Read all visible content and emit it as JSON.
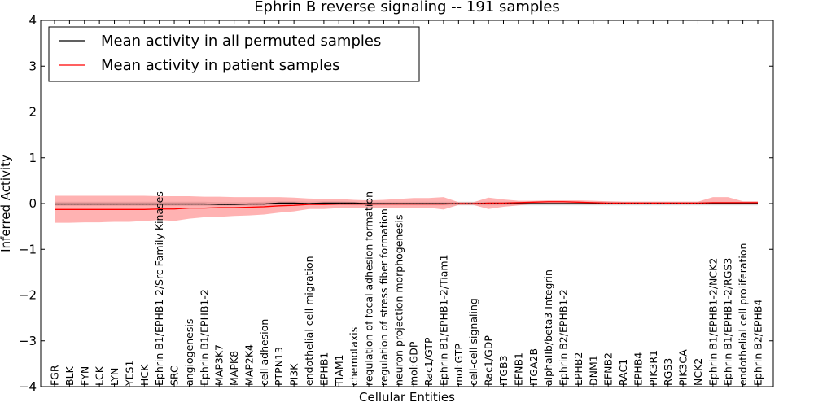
{
  "chart_data": {
    "type": "line",
    "title": "Ephrin B reverse signaling -- 191 samples",
    "xlabel": "Cellular Entities",
    "ylabel": "Inferred Activity",
    "ylim": [
      -4,
      4
    ],
    "yticks": [
      -4,
      -3,
      -2,
      -1,
      0,
      1,
      2,
      3,
      4
    ],
    "ytick_labels": [
      "−4",
      "−3",
      "−2",
      "−1",
      "0",
      "1",
      "2",
      "3",
      "4"
    ],
    "grid": false,
    "legend_placement": "top-left",
    "categories": [
      "FGR",
      "BLK",
      "FYN",
      "LCK",
      "LYN",
      "YES1",
      "HCK",
      "Ephrin B1/EPHB1-2/Src Family Kinases",
      "SRC",
      "angiogenesis",
      "Ephrin B1/EPHB1-2",
      "MAP3K7",
      "MAPK8",
      "MAP2K4",
      "cell adhesion",
      "PTPN13",
      "PI3K",
      "endothelial cell migration",
      "EPHB1",
      "TIAM1",
      "chemotaxis",
      "regulation of focal adhesion formation",
      "regulation of stress fiber formation",
      "neuron projection morphogenesis",
      "mol:GDP",
      "Rac1/GTP",
      "Ephrin B1/EPHB1-2/Tiam1",
      "mol:GTP",
      "cell-cell signaling",
      "Rac1/GDP",
      "ITGB3",
      "EFNB1",
      "ITGA2B",
      "alphaIIb/beta3 Integrin",
      "Ephrin B2/EPHB1-2",
      "EPHB2",
      "DNM1",
      "EFNB2",
      "RAC1",
      "EPHB4",
      "PIK3R1",
      "RGS3",
      "PIK3CA",
      "NCK2",
      "Ephrin B1/EPHB1-2/NCK2",
      "Ephrin B1/EPHB1-2/RGS3",
      "endothelial cell proliferation",
      "Ephrin B2/EPHB4"
    ],
    "series": [
      {
        "name": "Mean activity in all permuted samples",
        "color": "#000000",
        "values": [
          -0.01,
          -0.01,
          -0.01,
          -0.01,
          -0.01,
          -0.01,
          -0.01,
          -0.01,
          -0.01,
          -0.01,
          -0.01,
          -0.02,
          -0.02,
          -0.01,
          -0.01,
          0.01,
          0.01,
          0.0,
          0.01,
          0.01,
          0.01,
          0.0,
          0.0,
          0.0,
          0.0,
          0.0,
          0.0,
          0.0,
          0.0,
          0.0,
          0.0,
          0.0,
          0.0,
          0.0,
          0.0,
          0.0,
          0.0,
          0.0,
          0.0,
          0.0,
          0.0,
          0.0,
          0.0,
          0.0,
          0.0,
          0.0,
          0.0,
          0.0
        ],
        "band": {
          "lower": [
            -0.05,
            -0.05,
            -0.05,
            -0.05,
            -0.05,
            -0.05,
            -0.05,
            -0.05,
            -0.05,
            -0.05,
            -0.05,
            -0.05,
            -0.05,
            -0.05,
            -0.05,
            -0.03,
            -0.03,
            -0.03,
            -0.03,
            -0.03,
            -0.04,
            -0.04,
            -0.04,
            -0.04,
            -0.04,
            -0.04,
            -0.04,
            -0.04,
            -0.04,
            -0.04,
            -0.04,
            -0.04,
            -0.04,
            -0.04,
            -0.04,
            -0.04,
            -0.04,
            -0.04,
            -0.04,
            -0.04,
            -0.04,
            -0.04,
            -0.04,
            -0.04,
            -0.04,
            -0.04,
            -0.04,
            -0.04
          ],
          "upper": [
            0.04,
            0.04,
            0.04,
            0.04,
            0.04,
            0.04,
            0.04,
            0.04,
            0.04,
            0.04,
            0.04,
            0.03,
            0.03,
            0.03,
            0.04,
            0.05,
            0.05,
            0.04,
            0.05,
            0.05,
            0.04,
            0.04,
            0.04,
            0.04,
            0.04,
            0.04,
            0.04,
            0.04,
            0.04,
            0.04,
            0.04,
            0.04,
            0.04,
            0.04,
            0.04,
            0.04,
            0.04,
            0.04,
            0.04,
            0.04,
            0.04,
            0.04,
            0.04,
            0.04,
            0.04,
            0.04,
            0.04,
            0.04
          ],
          "color": "#bbbbbb"
        }
      },
      {
        "name": "Mean activity in patient samples",
        "color": "#ff0000",
        "values": [
          -0.13,
          -0.13,
          -0.13,
          -0.13,
          -0.13,
          -0.13,
          -0.13,
          -0.12,
          -0.12,
          -0.1,
          -0.1,
          -0.09,
          -0.09,
          -0.08,
          -0.07,
          -0.05,
          -0.04,
          -0.02,
          -0.02,
          -0.01,
          -0.01,
          -0.01,
          -0.01,
          -0.01,
          -0.01,
          -0.01,
          -0.01,
          0.0,
          0.0,
          0.01,
          0.01,
          0.02,
          0.03,
          0.04,
          0.04,
          0.03,
          0.02,
          0.01,
          0.01,
          0.01,
          0.01,
          0.01,
          0.01,
          0.01,
          0.02,
          0.02,
          0.02,
          0.02
        ],
        "band": {
          "lower": [
            -0.42,
            -0.42,
            -0.41,
            -0.41,
            -0.4,
            -0.4,
            -0.38,
            -0.36,
            -0.38,
            -0.33,
            -0.3,
            -0.29,
            -0.27,
            -0.26,
            -0.24,
            -0.2,
            -0.17,
            -0.12,
            -0.12,
            -0.1,
            -0.09,
            -0.09,
            -0.09,
            -0.09,
            -0.09,
            -0.09,
            -0.13,
            -0.03,
            -0.03,
            -0.12,
            -0.07,
            -0.04,
            -0.01,
            0.0,
            0.0,
            0.0,
            -0.01,
            -0.01,
            -0.01,
            -0.01,
            -0.01,
            -0.01,
            -0.01,
            -0.01,
            -0.01,
            -0.01,
            -0.01,
            -0.01
          ],
          "upper": [
            0.17,
            0.17,
            0.17,
            0.17,
            0.17,
            0.17,
            0.17,
            0.16,
            0.16,
            0.16,
            0.15,
            0.15,
            0.14,
            0.14,
            0.14,
            0.14,
            0.13,
            0.11,
            0.1,
            0.1,
            0.08,
            0.07,
            0.08,
            0.1,
            0.12,
            0.12,
            0.14,
            0.03,
            0.03,
            0.13,
            0.09,
            0.06,
            0.06,
            0.07,
            0.07,
            0.07,
            0.06,
            0.05,
            0.04,
            0.04,
            0.04,
            0.04,
            0.04,
            0.04,
            0.14,
            0.14,
            0.05,
            0.05
          ],
          "color": "#ff6666"
        }
      }
    ]
  }
}
